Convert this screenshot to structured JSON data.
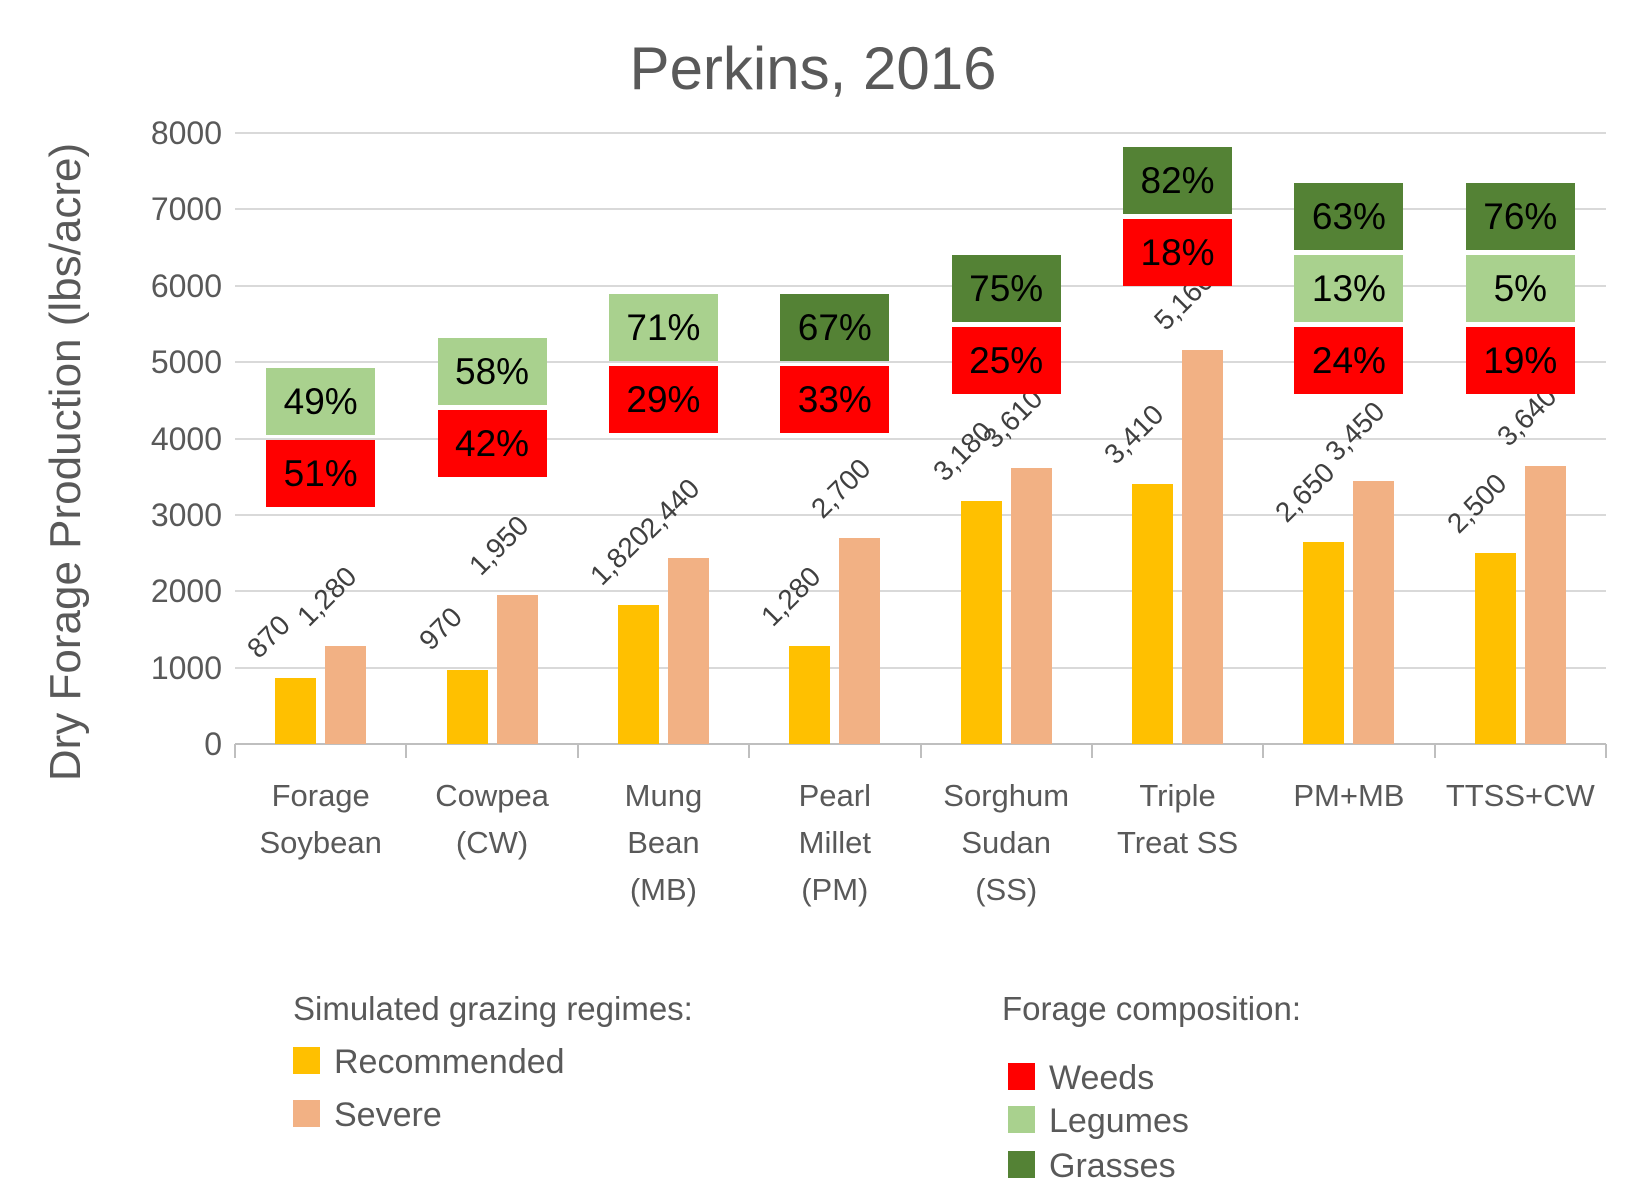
{
  "title": "Perkins, 2016",
  "y_axis_title": "Dry Forage Production (lbs/acre)",
  "colors": {
    "Recommended": "#FFC000",
    "Severe": "#F2B184",
    "Weeds": "#FF0000",
    "Legumes": "#A9D18E",
    "Grasses": "#548235",
    "gridline": "#D9D9D9",
    "axis": "#BFBFBF",
    "text_gray": "#595959"
  },
  "chart_data": {
    "type": "bar",
    "title": "Perkins, 2016",
    "xlabel": "",
    "ylabel": "Dry Forage Production (lbs/acre)",
    "ylim": [
      0,
      8000
    ],
    "y_ticks": [
      0,
      1000,
      2000,
      3000,
      4000,
      5000,
      6000,
      7000,
      8000
    ],
    "grid": true,
    "legend_position": "bottom",
    "categories": [
      "Forage Soybean",
      "Cowpea (CW)",
      "Mung Bean (MB)",
      "Pearl Millet (PM)",
      "Sorghum Sudan (SS)",
      "Triple Treat SS",
      "PM+MB",
      "TTSS+CW"
    ],
    "category_lines": [
      [
        "Forage",
        "Soybean"
      ],
      [
        "Cowpea",
        "(CW)"
      ],
      [
        "Mung",
        "Bean",
        "(MB)"
      ],
      [
        "Pearl",
        "Millet",
        "(PM)"
      ],
      [
        "Sorghum",
        "Sudan",
        "(SS)"
      ],
      [
        "Triple",
        "Treat SS"
      ],
      [
        "PM+MB"
      ],
      [
        "TTSS+CW"
      ]
    ],
    "series": [
      {
        "name": "Recommended",
        "values": [
          870,
          970,
          1820,
          1280,
          3180,
          3410,
          2650,
          2500
        ],
        "labels": [
          "870",
          "970",
          "1,820",
          "1,280",
          "3,180",
          "3,410",
          "2,650",
          "2,500"
        ]
      },
      {
        "name": "Severe",
        "values": [
          1280,
          1950,
          2440,
          2700,
          3610,
          5160,
          3450,
          3640
        ],
        "labels": [
          "1,280",
          "1,950",
          "2,440",
          "2,700",
          "3,610",
          "5,160",
          "3,450",
          "3,640"
        ]
      }
    ],
    "composition_boxes": [
      {
        "category": "Forage Soybean",
        "top_value": 4920,
        "segments": [
          {
            "label": "49%",
            "type": "Legumes"
          },
          {
            "label": "51%",
            "type": "Weeds"
          }
        ]
      },
      {
        "category": "Cowpea (CW)",
        "top_value": 5320,
        "segments": [
          {
            "label": "58%",
            "type": "Legumes"
          },
          {
            "label": "42%",
            "type": "Weeds"
          }
        ]
      },
      {
        "category": "Mung Bean (MB)",
        "top_value": 5890,
        "segments": [
          {
            "label": "71%",
            "type": "Legumes"
          },
          {
            "label": "29%",
            "type": "Weeds"
          }
        ]
      },
      {
        "category": "Pearl Millet (PM)",
        "top_value": 5890,
        "segments": [
          {
            "label": "67%",
            "type": "Grasses"
          },
          {
            "label": "33%",
            "type": "Weeds"
          }
        ]
      },
      {
        "category": "Sorghum Sudan (SS)",
        "top_value": 6400,
        "segments": [
          {
            "label": "75%",
            "type": "Grasses"
          },
          {
            "label": "25%",
            "type": "Weeds"
          }
        ]
      },
      {
        "category": "Triple Treat SS",
        "top_value": 7820,
        "segments": [
          {
            "label": "82%",
            "type": "Grasses"
          },
          {
            "label": "18%",
            "type": "Weeds"
          }
        ]
      },
      {
        "category": "PM+MB",
        "top_value": 7350,
        "segments": [
          {
            "label": "63%",
            "type": "Grasses"
          },
          {
            "label": "13%",
            "type": "Legumes"
          },
          {
            "label": "24%",
            "type": "Weeds"
          }
        ]
      },
      {
        "category": "TTSS+CW",
        "top_value": 7340,
        "segments": [
          {
            "label": "76%",
            "type": "Grasses"
          },
          {
            "label": "5%",
            "type": "Legumes"
          },
          {
            "label": "19%",
            "type": "Weeds"
          }
        ]
      }
    ]
  },
  "legend_grazing": {
    "title": "Simulated grazing regimes:",
    "items": [
      {
        "label": "Recommended",
        "color_key": "Recommended"
      },
      {
        "label": "Severe",
        "color_key": "Severe"
      }
    ]
  },
  "legend_composition": {
    "title": "Forage composition:",
    "items": [
      {
        "label": "Weeds",
        "color_key": "Weeds"
      },
      {
        "label": "Legumes",
        "color_key": "Legumes"
      },
      {
        "label": "Grasses",
        "color_key": "Grasses"
      }
    ]
  }
}
